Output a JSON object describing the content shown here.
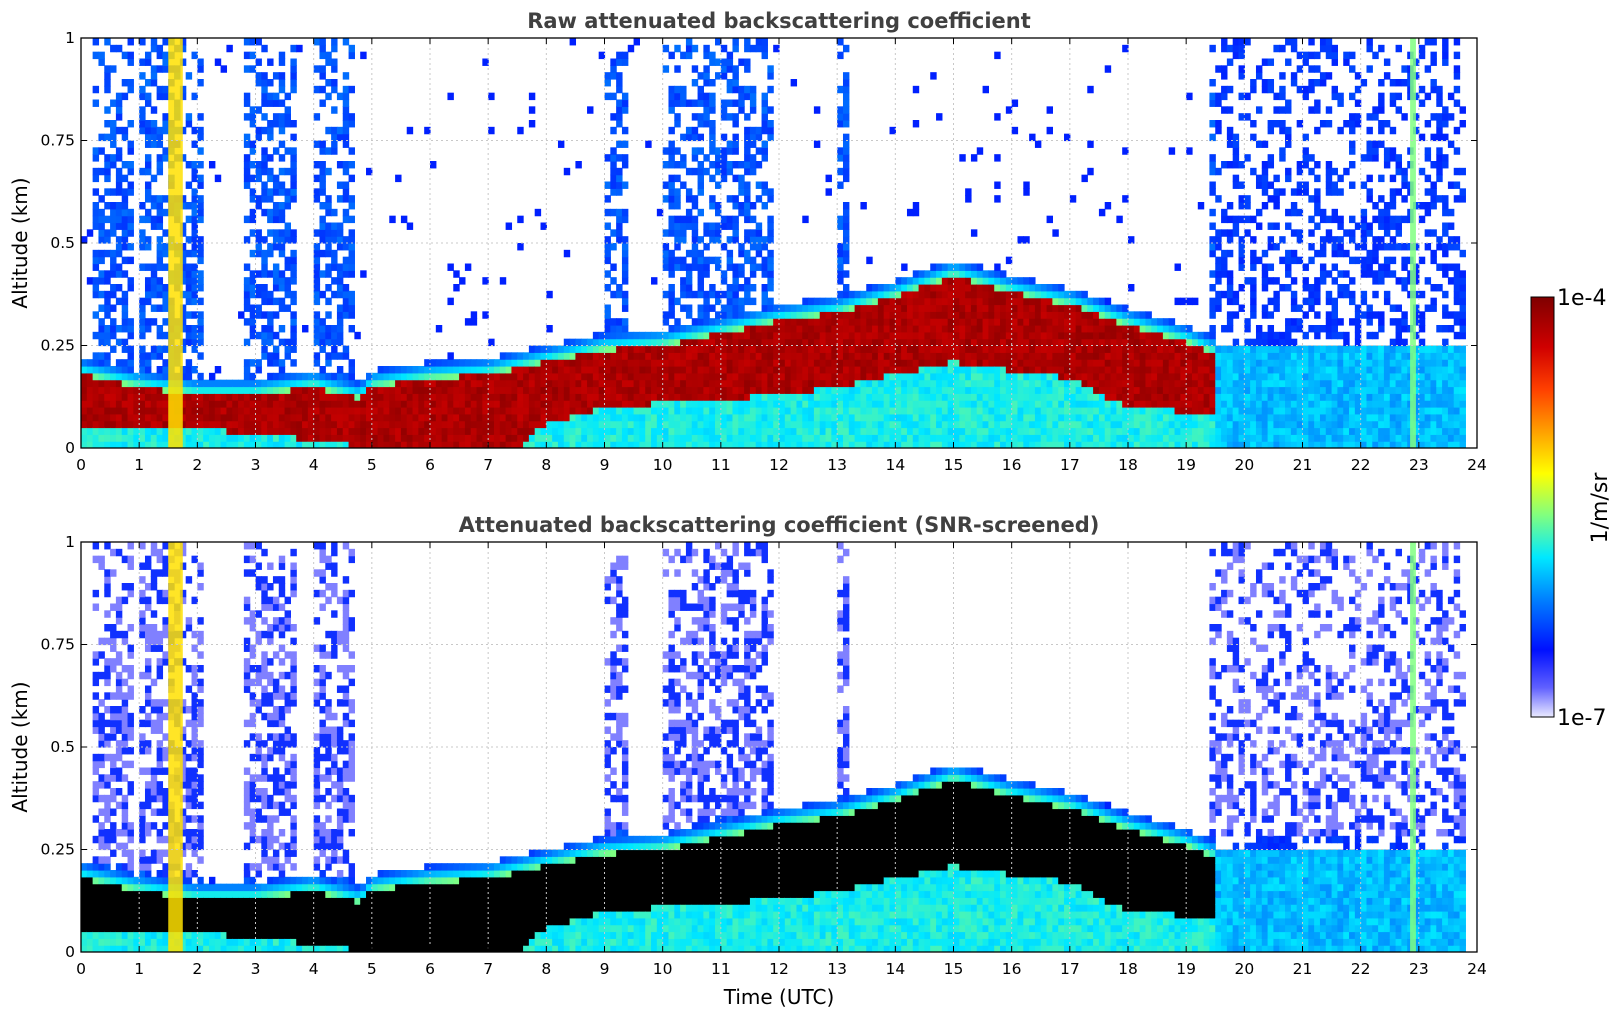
{
  "chart_data": [
    {
      "type": "heatmap",
      "title": "Raw attenuated backscattering coefficient",
      "xlabel": "",
      "ylabel": "Altitude (km)",
      "xlim": [
        0,
        24
      ],
      "ylim": [
        0,
        1
      ],
      "xticks": [
        "0",
        "1",
        "2",
        "3",
        "4",
        "5",
        "6",
        "7",
        "8",
        "9",
        "10",
        "11",
        "12",
        "13",
        "14",
        "15",
        "16",
        "17",
        "18",
        "19",
        "20",
        "21",
        "22",
        "23",
        "24"
      ],
      "yticks": [
        "0",
        "0.25",
        "0.5",
        "0.75",
        "1"
      ],
      "grid": true,
      "variant": "raw",
      "layer_top_km": [
        {
          "t": 0.0,
          "z": 0.18
        },
        {
          "t": 1.0,
          "z": 0.15
        },
        {
          "t": 2.0,
          "z": 0.13
        },
        {
          "t": 3.0,
          "z": 0.13
        },
        {
          "t": 4.0,
          "z": 0.15
        },
        {
          "t": 4.8,
          "z": 0.12
        },
        {
          "t": 5.0,
          "z": 0.15
        },
        {
          "t": 6.0,
          "z": 0.17
        },
        {
          "t": 7.0,
          "z": 0.18
        },
        {
          "t": 8.0,
          "z": 0.21
        },
        {
          "t": 9.0,
          "z": 0.24
        },
        {
          "t": 10.0,
          "z": 0.25
        },
        {
          "t": 11.0,
          "z": 0.28
        },
        {
          "t": 12.0,
          "z": 0.31
        },
        {
          "t": 13.0,
          "z": 0.33
        },
        {
          "t": 14.0,
          "z": 0.37
        },
        {
          "t": 15.0,
          "z": 0.42
        },
        {
          "t": 16.0,
          "z": 0.38
        },
        {
          "t": 17.0,
          "z": 0.35
        },
        {
          "t": 18.0,
          "z": 0.3
        },
        {
          "t": 19.0,
          "z": 0.26
        },
        {
          "t": 19.5,
          "z": 0.23
        }
      ],
      "layer_bottom_km": [
        {
          "t": 0.0,
          "z": 0.05
        },
        {
          "t": 3.0,
          "z": 0.04
        },
        {
          "t": 5.0,
          "z": 0.0
        },
        {
          "t": 7.5,
          "z": 0.0
        },
        {
          "t": 8.0,
          "z": 0.06
        },
        {
          "t": 9.0,
          "z": 0.1
        },
        {
          "t": 10.0,
          "z": 0.11
        },
        {
          "t": 12.0,
          "z": 0.13
        },
        {
          "t": 13.0,
          "z": 0.15
        },
        {
          "t": 15.0,
          "z": 0.21
        },
        {
          "t": 17.0,
          "z": 0.17
        },
        {
          "t": 18.0,
          "z": 0.1
        },
        {
          "t": 19.0,
          "z": 0.09
        },
        {
          "t": 19.5,
          "z": 0.09
        }
      ]
    },
    {
      "type": "heatmap",
      "title": "Attenuated backscattering coefficient (SNR-screened)",
      "xlabel": "Time (UTC)",
      "ylabel": "Altitude (km)",
      "xlim": [
        0,
        24
      ],
      "ylim": [
        0,
        1
      ],
      "xticks": [
        "0",
        "1",
        "2",
        "3",
        "4",
        "5",
        "6",
        "7",
        "8",
        "9",
        "10",
        "11",
        "12",
        "13",
        "14",
        "15",
        "16",
        "17",
        "18",
        "19",
        "20",
        "21",
        "22",
        "23",
        "24"
      ],
      "yticks": [
        "0",
        "0.25",
        "0.5",
        "0.75",
        "1"
      ],
      "grid": true,
      "variant": "screened",
      "saturated_color": "#000000"
    }
  ],
  "colorbar": {
    "max_label": "1e-4",
    "min_label": "1e-7",
    "unit_label": "1/m/sr",
    "scale": "log",
    "colors": [
      "#7f0000",
      "#ff0000",
      "#ff8000",
      "#ffff00",
      "#80ff80",
      "#00ffff",
      "#0080ff",
      "#0000ff",
      "#e8e8ff"
    ]
  }
}
